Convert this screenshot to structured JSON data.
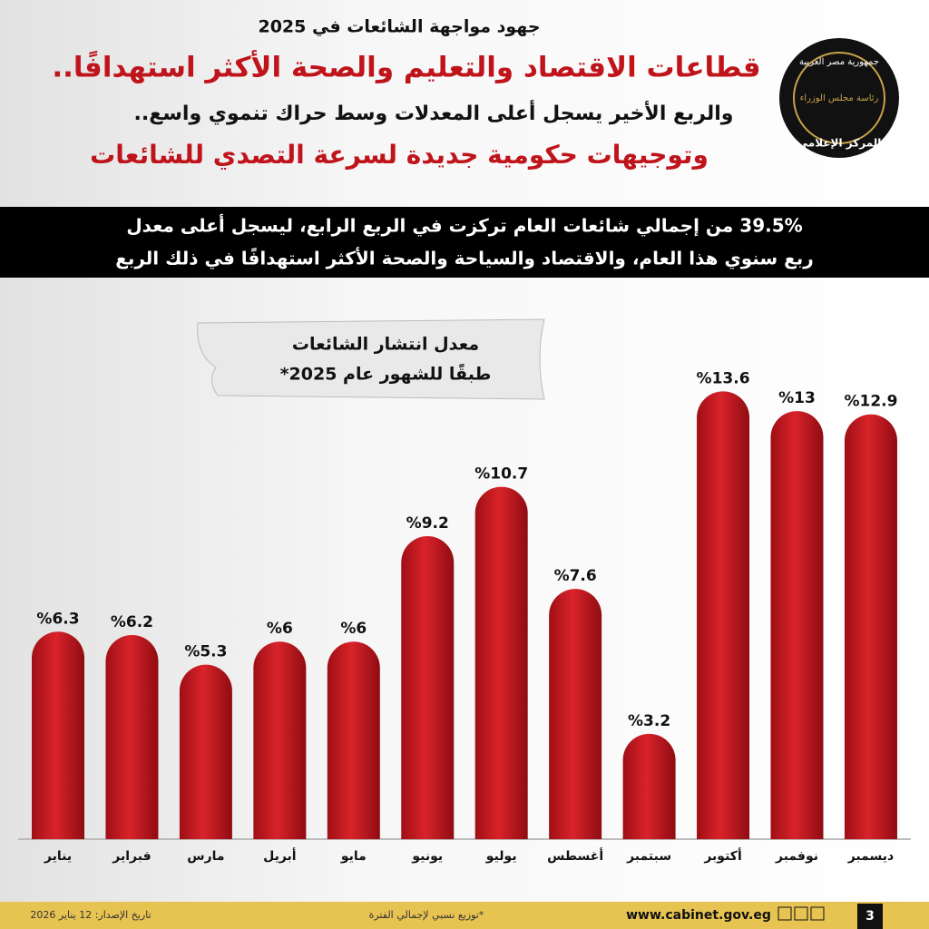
{
  "header": {
    "kicker": "جهود مواجهة الشائعات في 2025",
    "headline": "قطاعات الاقتصاد والتعليم والصحة الأكثر استهدافًا..",
    "line2": "والربع الأخير يسجل أعلى المعدلات وسط حراك تنموي واسع..",
    "line3": "وتوجيهات حكومية جديدة لسرعة التصدي للشائعات"
  },
  "logo": {
    "top": "جمهورية مصر العربية",
    "middle": "رئاسة مجلس الوزراء",
    "bottom": "المركز الإعلامي"
  },
  "banner": {
    "line1": "39.5% من إجمالي شائعات العام تركزت في الربع الرابع، ليسجل أعلى معدل",
    "line2": "ربع سنوي هذا العام، والاقتصاد والسياحة والصحة الأكثر استهدافًا في ذلك الربع"
  },
  "chart_data": {
    "type": "bar",
    "title": "معدل انتشار الشائعات",
    "subtitle": "طبقًا للشهور عام 2025*",
    "categories": [
      "يناير",
      "فبراير",
      "مارس",
      "أبريل",
      "مايو",
      "يونيو",
      "يوليو",
      "أغسطس",
      "سبتمبر",
      "أكتوبر",
      "نوفمبر",
      "ديسمبر"
    ],
    "values": [
      6.3,
      6.2,
      5.3,
      6,
      6,
      9.2,
      10.7,
      7.6,
      3.2,
      13.6,
      13,
      12.9
    ],
    "value_labels": [
      "%6.3",
      "%6.2",
      "%5.3",
      "%6",
      "%6",
      "%9.2",
      "%10.7",
      "%7.6",
      "%3.2",
      "%13.6",
      "%13",
      "%12.9"
    ],
    "color": "#c8161d"
  },
  "footer": {
    "date": "تاريخ الإصدار: 12 يناير 2026",
    "note": "*توزيع نسبي لإجمالي الفترة",
    "website": "www.cabinet.gov.eg",
    "page": "3"
  }
}
